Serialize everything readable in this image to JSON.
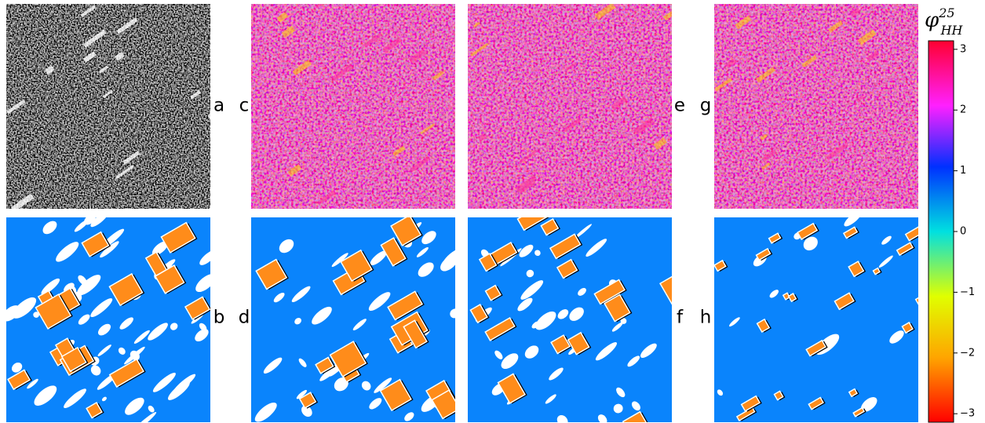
{
  "figure": {
    "panel_labels": [
      "a",
      "b",
      "c",
      "d",
      "e",
      "f",
      "g",
      "h"
    ],
    "colorbar": {
      "title": {
        "symbol": "φ",
        "superscript": "25",
        "subscript": "HH"
      },
      "ylim": [
        -3.14,
        3.14
      ],
      "yticks": [
        3,
        2,
        1,
        0,
        {
          "value": -1,
          "label": "−1"
        },
        {
          "value": -2,
          "label": "−2"
        },
        {
          "value": -3,
          "label": "−3"
        }
      ]
    }
  }
}
